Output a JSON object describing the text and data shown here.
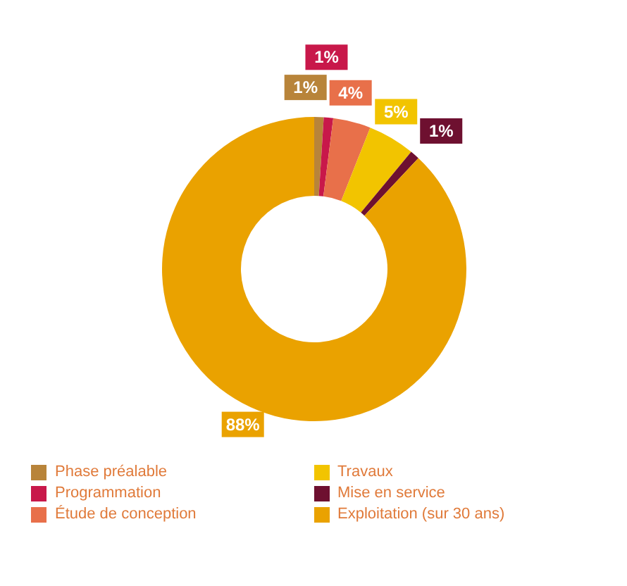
{
  "chart_data": {
    "type": "donut",
    "categories": [
      "Phase préalable",
      "Programmation",
      "Étude de conception",
      "Travaux",
      "Mise en service",
      "Exploitation (sur 30 ans)"
    ],
    "values": [
      1,
      1,
      4,
      5,
      1,
      88
    ],
    "colors": [
      "#b8843a",
      "#c8184a",
      "#e8704a",
      "#f2c400",
      "#6e1030",
      "#eaa200"
    ],
    "data_labels": true,
    "value_labels": [
      "1%",
      "1%",
      "4%",
      "5%",
      "1%",
      "88%"
    ],
    "legend": "bottom"
  }
}
